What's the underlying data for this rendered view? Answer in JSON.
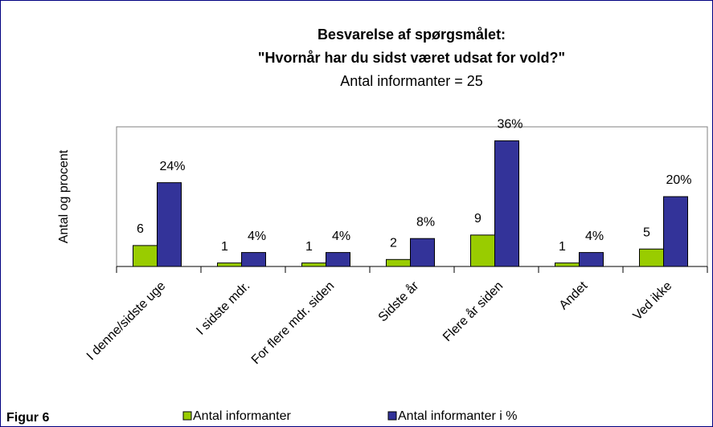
{
  "chart_data": {
    "type": "bar",
    "title": [
      "Besvarelse af spørgsmålet:",
      "\"Hvornår har du sidst været udsat for vold?\""
    ],
    "subtitle": "Antal informanter = 25",
    "y_label": "Antal og procent",
    "figure_label": "Figur 6",
    "categories": [
      "I denne/sidste uge",
      "I sidste mdr.",
      "For flere mdr. siden",
      "Sidste år",
      "Flere år siden",
      "Andet",
      "Ved ikke"
    ],
    "series": [
      {
        "name": "Antal informanter",
        "color": "#99cc00",
        "values": [
          6,
          1,
          1,
          2,
          9,
          1,
          5
        ]
      },
      {
        "name": "Antal informanter i %",
        "color": "#333399",
        "values": [
          24,
          4,
          4,
          8,
          36,
          4,
          20
        ],
        "value_labels": [
          "24%",
          "4%",
          "4%",
          "8%",
          "36%",
          "4%",
          "20%"
        ]
      }
    ],
    "ylim": [
      0,
      40
    ]
  }
}
